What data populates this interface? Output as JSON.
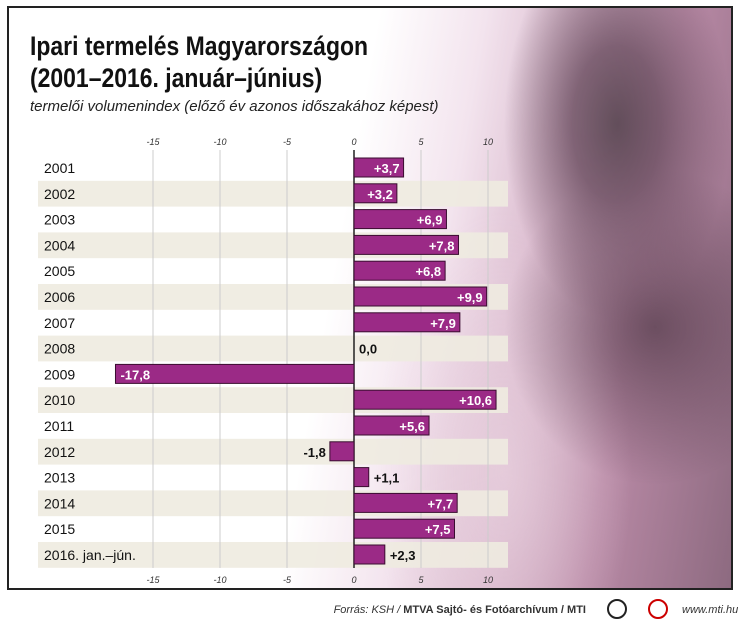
{
  "title_line1": "Ipari termelés Magyarországon",
  "title_line2": "(2001–2016. január–június)",
  "subtitle": "termelői volumenindex (előző év azonos időszakához képest)",
  "chart_data": {
    "type": "bar",
    "orientation": "horizontal",
    "categories": [
      "2001",
      "2002",
      "2003",
      "2004",
      "2005",
      "2006",
      "2007",
      "2008",
      "2009",
      "2010",
      "2011",
      "2012",
      "2013",
      "2014",
      "2015",
      "2016. jan.–jún."
    ],
    "values": [
      3.7,
      3.2,
      6.9,
      7.8,
      6.8,
      9.9,
      7.9,
      0.0,
      -17.8,
      10.6,
      5.6,
      -1.8,
      1.1,
      7.7,
      7.5,
      2.3
    ],
    "labels": [
      "+3,7",
      "+3,2",
      "+6,9",
      "+7,8",
      "+6,8",
      "+9,9",
      "+7,9",
      "0,0",
      "-17,8",
      "+10,6",
      "+5,6",
      "-1,8",
      "+1,1",
      "+7,7",
      "+7,5",
      "+2,3"
    ],
    "xticks": [
      -15,
      -10,
      -5,
      0,
      5,
      10
    ],
    "xtick_labels": [
      "-15",
      "-10",
      "-5",
      "0",
      "5",
      "10"
    ],
    "grid": true,
    "bar_color": "#9b2a86",
    "band_color": "#eeebe0"
  },
  "footer": {
    "source_prefix": "Forrás: KSH / ",
    "source_bold": "MTVA Sajtó- és Fotóarchívum / MTI",
    "url": "www.mti.hu",
    "logo1": "MTVA"
  }
}
